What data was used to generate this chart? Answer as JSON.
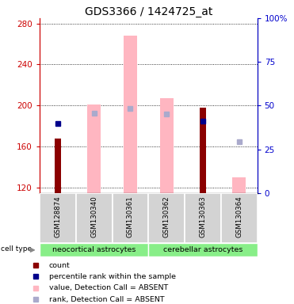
{
  "title": "GDS3366 / 1424725_at",
  "samples": [
    "GSM128874",
    "GSM130340",
    "GSM130361",
    "GSM130362",
    "GSM130363",
    "GSM130364"
  ],
  "ylim_left": [
    115,
    285
  ],
  "ylim_right": [
    0,
    100
  ],
  "yticks_left": [
    120,
    160,
    200,
    240,
    280
  ],
  "yticks_right": [
    0,
    25,
    50,
    75,
    100
  ],
  "ytick_right_labels": [
    "0",
    "25",
    "50",
    "75",
    "100%"
  ],
  "value_bars": {
    "color": "#ffb6c1",
    "data": [
      null,
      201,
      268,
      207,
      null,
      130
    ],
    "base": 115
  },
  "count_bars": {
    "color": "#8b0000",
    "data": [
      168,
      null,
      null,
      null,
      198,
      null
    ],
    "base": 115
  },
  "rank_dots": {
    "color": "#00008b",
    "data": [
      183,
      null,
      null,
      null,
      185,
      null
    ],
    "size": 5
  },
  "rank_absent_dots": {
    "color": "#aaaacc",
    "data": [
      null,
      193,
      197,
      192,
      null,
      165
    ],
    "size": 4
  },
  "cell_type_groups": [
    {
      "label": "neocortical astrocytes",
      "start": 0,
      "end": 3,
      "color": "#88ee88"
    },
    {
      "label": "cerebellar astrocytes",
      "start": 3,
      "end": 6,
      "color": "#88ee88"
    }
  ],
  "legend_items": [
    {
      "color": "#8b0000",
      "label": "count"
    },
    {
      "color": "#00008b",
      "label": "percentile rank within the sample"
    },
    {
      "color": "#ffb6c1",
      "label": "value, Detection Call = ABSENT"
    },
    {
      "color": "#aaaacc",
      "label": "rank, Detection Call = ABSENT"
    }
  ],
  "title_fontsize": 10,
  "axis_label_color_left": "#cc0000",
  "axis_label_color_right": "#0000cc",
  "bg_color_sample": "#d3d3d3",
  "bar_width": 0.38,
  "count_bar_width": 0.18
}
